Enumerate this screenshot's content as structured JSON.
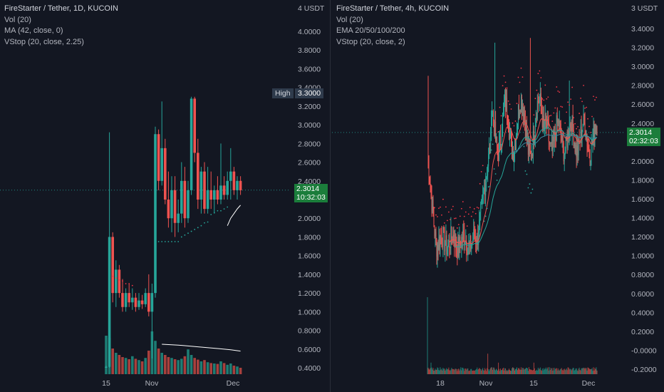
{
  "colors": {
    "up": "#26a69a",
    "down": "#ef5350",
    "up_dark": "#1d7d74",
    "down_dark": "#a8403d",
    "vstop": "#f23645",
    "ema_teal": "#26a69a",
    "ema_blue": "#3d8ba0",
    "ma": "#ffffff",
    "background": "#131722",
    "last_price_bg": "#1b7d3b"
  },
  "chart_data": [
    {
      "type": "candlestick",
      "title": "FireStarter / Tether, 1D, KUCOIN",
      "indicators": [
        "Vol (20)",
        "MA (42, close, 0)",
        "VStop (20, close, 2.25)"
      ],
      "currency_label": "4 USDT",
      "y_ticks": [
        "4.0000",
        "3.8000",
        "3.6000",
        "3.4000",
        "3.2000",
        "3.0000",
        "2.8000",
        "2.6000",
        "2.4000",
        "2.2000",
        "2.0000",
        "1.8000",
        "1.6000",
        "1.4000",
        "1.2000",
        "1.0000",
        "0.8000",
        "0.6000",
        "0.4000"
      ],
      "ylim": [
        0.4,
        4.0
      ],
      "x_ticks": [
        "15",
        "Nov",
        "Dec"
      ],
      "high_label": "High",
      "high_value": "3.3000",
      "last_price": "2.3014",
      "countdown": "10:32:03",
      "candles": [
        [
          0.4,
          0.42,
          0.4,
          0.41
        ],
        [
          0.41,
          2.92,
          0.4,
          1.8
        ],
        [
          1.8,
          1.85,
          1.1,
          1.2
        ],
        [
          1.2,
          1.55,
          1.05,
          1.45
        ],
        [
          1.45,
          1.5,
          1.15,
          1.2
        ],
        [
          1.2,
          1.35,
          1.0,
          1.05
        ],
        [
          1.05,
          1.25,
          1.0,
          1.2
        ],
        [
          1.2,
          1.3,
          1.05,
          1.1
        ],
        [
          1.1,
          1.25,
          1.02,
          1.15
        ],
        [
          1.15,
          1.2,
          1.0,
          1.05
        ],
        [
          1.05,
          1.2,
          1.02,
          1.12
        ],
        [
          1.12,
          1.18,
          1.03,
          1.08
        ],
        [
          1.08,
          1.25,
          1.05,
          1.2
        ],
        [
          1.2,
          1.4,
          0.95,
          1.0
        ],
        [
          1.0,
          1.3,
          0.5,
          1.2
        ],
        [
          1.2,
          2.98,
          1.15,
          2.9
        ],
        [
          2.9,
          2.95,
          2.3,
          2.4
        ],
        [
          2.4,
          3.25,
          2.35,
          2.75
        ],
        [
          2.75,
          2.85,
          2.15,
          2.2
        ],
        [
          2.2,
          2.5,
          1.9,
          2.0
        ],
        [
          2.0,
          2.45,
          1.85,
          2.3
        ],
        [
          2.3,
          2.45,
          1.8,
          1.95
        ],
        [
          1.95,
          2.2,
          1.85,
          2.05
        ],
        [
          2.05,
          2.6,
          1.95,
          2.4
        ],
        [
          2.4,
          2.55,
          1.9,
          2.0
        ],
        [
          2.0,
          2.4,
          1.95,
          2.3
        ],
        [
          2.3,
          3.3,
          2.25,
          3.28
        ],
        [
          3.28,
          3.3,
          2.6,
          2.7
        ],
        [
          2.7,
          2.85,
          2.1,
          2.2
        ],
        [
          2.2,
          2.55,
          2.05,
          2.5
        ],
        [
          2.5,
          2.6,
          2.05,
          2.1
        ],
        [
          2.1,
          2.55,
          2.05,
          2.3
        ],
        [
          2.3,
          2.5,
          2.1,
          2.2
        ],
        [
          2.2,
          2.35,
          2.05,
          2.3
        ],
        [
          2.3,
          2.45,
          2.15,
          2.2
        ],
        [
          2.2,
          2.8,
          2.15,
          2.35
        ],
        [
          2.35,
          2.45,
          2.2,
          2.25
        ],
        [
          2.25,
          2.5,
          2.2,
          2.4
        ],
        [
          2.4,
          2.75,
          2.2,
          2.5
        ],
        [
          2.5,
          2.55,
          2.25,
          2.3
        ],
        [
          2.3,
          2.45,
          2.2,
          2.4
        ],
        [
          2.4,
          2.45,
          2.25,
          2.3
        ]
      ],
      "volume": [
        0.9,
        0.85,
        0.6,
        0.5,
        0.45,
        0.4,
        0.38,
        0.35,
        0.42,
        0.36,
        0.33,
        0.3,
        0.38,
        0.55,
        1.0,
        0.78,
        0.6,
        0.5,
        0.45,
        0.4,
        0.38,
        0.35,
        0.33,
        0.36,
        0.42,
        0.58,
        0.45,
        0.38,
        0.34,
        0.3,
        0.33,
        0.28,
        0.26,
        0.25,
        0.24,
        0.3,
        0.26,
        0.22,
        0.25,
        0.2,
        0.18,
        0.15
      ],
      "ma_line": [
        [
          17,
          0.7
        ],
        [
          22,
          0.68
        ],
        [
          28,
          0.64
        ],
        [
          34,
          0.6
        ],
        [
          38,
          0.57
        ],
        [
          41,
          0.54
        ]
      ],
      "vstop_points": [
        [
          2,
          1.38
        ],
        [
          3,
          1.36
        ],
        [
          4,
          1.34
        ],
        [
          5,
          1.33
        ],
        [
          6,
          1.3
        ],
        [
          7,
          1.3
        ],
        [
          8,
          1.28
        ],
        [
          16,
          1.75
        ],
        [
          17,
          1.75
        ],
        [
          18,
          1.75
        ],
        [
          19,
          1.75
        ],
        [
          20,
          1.75
        ],
        [
          21,
          1.75
        ],
        [
          22,
          1.75
        ],
        [
          23,
          1.8
        ],
        [
          24,
          1.82
        ],
        [
          25,
          1.84
        ],
        [
          26,
          1.86
        ],
        [
          27,
          1.88
        ],
        [
          28,
          1.9
        ],
        [
          29,
          1.92
        ],
        [
          30,
          1.95
        ],
        [
          31,
          1.96
        ],
        [
          32,
          2.04
        ],
        [
          33,
          2.06
        ],
        [
          34,
          2.08
        ],
        [
          35,
          2.08
        ],
        [
          36,
          2.1
        ],
        [
          37,
          2.12
        ]
      ],
      "vstop_line": [
        [
          37,
          1.92
        ],
        [
          38,
          2.0
        ],
        [
          39,
          2.05
        ],
        [
          40,
          2.1
        ],
        [
          41,
          2.14
        ]
      ]
    },
    {
      "type": "candlestick",
      "title": "FireStarter / Tether, 4h, KUCOIN",
      "indicators": [
        "Vol (20)",
        "EMA 20/50/100/200",
        "VStop (20, close, 2)"
      ],
      "currency_label": "3 USDT",
      "y_ticks": [
        "3.4000",
        "3.2000",
        "3.0000",
        "2.8000",
        "2.6000",
        "2.4000",
        "2.2000",
        "2.0000",
        "1.8000",
        "1.6000",
        "1.4000",
        "1.2000",
        "1.0000",
        "0.8000",
        "0.6000",
        "0.4000",
        "0.2000",
        "-0.0000",
        "-0.2000"
      ],
      "ylim": [
        -0.2,
        3.4
      ],
      "x_ticks": [
        "18",
        "Nov",
        "15",
        "Dec"
      ],
      "last_price": "2.3014",
      "countdown": "02:32:03"
    }
  ]
}
